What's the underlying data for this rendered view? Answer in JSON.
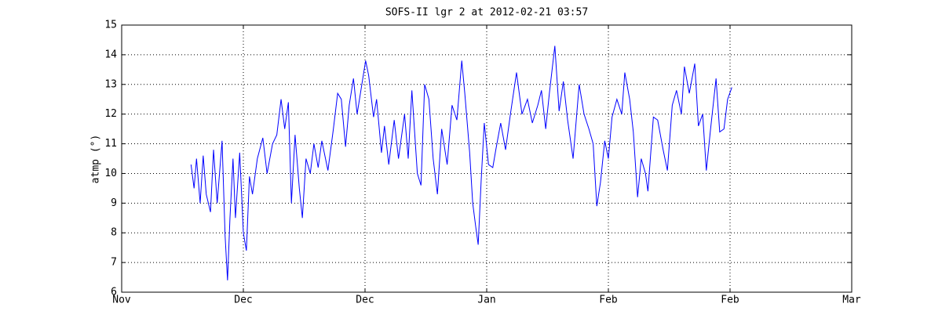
{
  "chart_data": {
    "type": "line",
    "title": "SOFS-II lgr 2 at 2012-02-21 03:57",
    "ylabel": "atmp (°)",
    "x": [
      11.4,
      11.9,
      12.3,
      12.9,
      13.4,
      13.9,
      14.6,
      15.1,
      15.7,
      16.5,
      17.0,
      17.4,
      17.8,
      18.3,
      18.7,
      19.4,
      20.0,
      20.5,
      21.0,
      21.5,
      22.3,
      23.2,
      23.9,
      24.8,
      25.5,
      26.2,
      26.8,
      27.4,
      27.9,
      28.5,
      29.2,
      29.7,
      30.3,
      31.0,
      31.6,
      32.3,
      32.9,
      33.9,
      34.8,
      35.5,
      36.1,
      36.8,
      37.4,
      38.1,
      38.7,
      39.4,
      40.1,
      40.6,
      41.4,
      41.9,
      42.7,
      43.2,
      43.9,
      44.8,
      45.5,
      46.5,
      47.1,
      47.7,
      48.6,
      49.2,
      49.8,
      50.5,
      51.2,
      51.9,
      52.6,
      53.5,
      54.3,
      55.1,
      55.9,
      56.4,
      57.2,
      57.7,
      58.2,
      58.6,
      59.1,
      59.6,
      60.3,
      61.0,
      61.5,
      62.3,
      63.1,
      63.9,
      64.9,
      65.8,
      66.7,
      67.5,
      68.4,
      69.0,
      69.7,
      70.3,
      71.2,
      71.9,
      72.6,
      73.3,
      74.2,
      75.2,
      76.0,
      76.8,
      77.5,
      78.1,
      78.7,
      79.4,
      80.0,
      80.6,
      81.4,
      82.2,
      82.7,
      83.5,
      84.1,
      84.8,
      85.4,
      86.1,
      86.5,
      87.4,
      88.1,
      89.0,
      89.7,
      90.5,
      91.2,
      92.0,
      92.5,
      93.3,
      94.2,
      94.8,
      95.5,
      96.1,
      96.8,
      97.7,
      98.3,
      99.0,
      99.6,
      100.3
    ],
    "series": [
      {
        "color": "#0000ff",
        "values": [
          10.3,
          9.5,
          10.5,
          9.0,
          10.6,
          9.3,
          8.7,
          10.8,
          9.0,
          11.1,
          7.9,
          6.4,
          8.5,
          10.5,
          8.5,
          10.7,
          8.0,
          7.4,
          9.9,
          9.3,
          10.5,
          11.2,
          10.0,
          11.0,
          11.3,
          12.5,
          11.5,
          12.4,
          9.0,
          11.3,
          9.5,
          8.5,
          10.5,
          10.0,
          11.0,
          10.2,
          11.1,
          10.1,
          11.5,
          12.7,
          12.5,
          10.9,
          12.3,
          13.2,
          12.0,
          12.9,
          13.8,
          13.3,
          11.9,
          12.5,
          10.7,
          11.6,
          10.3,
          11.8,
          10.5,
          12.0,
          10.5,
          12.8,
          10.0,
          9.6,
          13.0,
          12.5,
          10.5,
          9.3,
          11.5,
          10.3,
          12.3,
          11.8,
          13.8,
          12.7,
          10.7,
          9.0,
          8.2,
          7.6,
          9.8,
          11.7,
          10.3,
          10.2,
          10.8,
          11.7,
          10.8,
          12.0,
          13.4,
          12.0,
          12.5,
          11.7,
          12.3,
          12.8,
          11.5,
          12.7,
          14.3,
          12.1,
          13.1,
          11.8,
          10.5,
          13.0,
          12.0,
          11.5,
          11.0,
          8.9,
          9.7,
          11.1,
          10.5,
          11.9,
          12.5,
          12.0,
          13.4,
          12.5,
          11.4,
          9.2,
          10.5,
          10.0,
          9.4,
          11.9,
          11.8,
          10.8,
          10.1,
          12.3,
          12.8,
          12.0,
          13.6,
          12.7,
          13.7,
          11.6,
          12.0,
          10.1,
          11.5,
          13.2,
          11.4,
          11.5,
          12.5,
          12.9
        ]
      }
    ],
    "xlim": [
      0,
      120
    ],
    "xticks": [
      {
        "value": 0,
        "label": "Nov"
      },
      {
        "value": 20,
        "label": "Dec"
      },
      {
        "value": 40,
        "label": "Dec"
      },
      {
        "value": 60,
        "label": "Jan"
      },
      {
        "value": 80,
        "label": "Feb"
      },
      {
        "value": 100,
        "label": "Feb"
      },
      {
        "value": 120,
        "label": "Mar"
      }
    ],
    "ylim": [
      6,
      15
    ],
    "yticks": [
      6,
      7,
      8,
      9,
      10,
      11,
      12,
      13,
      14,
      15
    ],
    "grid": true
  }
}
